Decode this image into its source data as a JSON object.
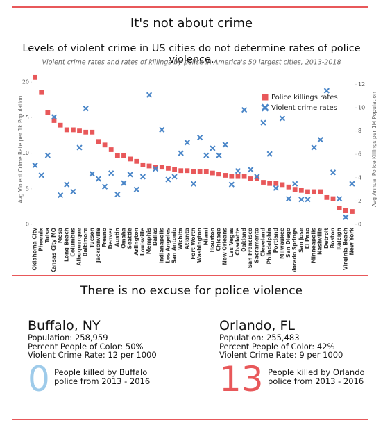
{
  "header": {
    "title": "It's not about crime",
    "subtitle": "Levels of violent crime in US cities do not determine rates of police violence."
  },
  "chart_data": {
    "type": "scatter",
    "title": "Violent crime rates and rates of killings by police in America's 50 largest cities, 2013-2018",
    "y_label": "Avg Violent Crime Rate per 1k Population",
    "y2_label": "Avg Annual Police Killings per 1M Population",
    "categories": [
      "Oklahoma City",
      "Phoenix",
      "Tulsa",
      "Kansas City MO",
      "Mesa",
      "Long Beach",
      "Columbus",
      "Albuquerque",
      "Baltimore",
      "Tucson",
      "Jacksonville",
      "Fresno",
      "Denver",
      "Austin",
      "Omaha",
      "Seattle",
      "Arlington",
      "Louisville",
      "Memphis",
      "Dallas",
      "Indianapolis",
      "Los Angeles",
      "San Antonio",
      "Wichita",
      "Atlanta",
      "Fort Worth",
      "Washington",
      "Miami",
      "Houston",
      "Chicago",
      "New Orleans",
      "Las Vegas",
      "Charlotte",
      "Oakland",
      "San Francisco",
      "Sacramento",
      "Cleveland",
      "Philadelphia",
      "Portland",
      "Milwaukee",
      "San Diego",
      "Colorado Springs",
      "San Jose",
      "El Paso",
      "Minneapolis",
      "Nashville",
      "Detroit",
      "Boston",
      "Raleigh",
      "Virginia Beach",
      "New York"
    ],
    "series": [
      {
        "name": "Police killings rates",
        "color": "#e8585a",
        "marker": "square",
        "axis": "y2",
        "values": [
          12.6,
          11.3,
          9.6,
          8.9,
          8.5,
          8.1,
          8.1,
          8.0,
          7.9,
          7.9,
          7.1,
          6.8,
          6.4,
          5.9,
          5.9,
          5.6,
          5.4,
          5.1,
          5.0,
          4.9,
          4.9,
          4.8,
          4.7,
          4.6,
          4.6,
          4.5,
          4.5,
          4.5,
          4.4,
          4.3,
          4.2,
          4.1,
          4.1,
          4.1,
          3.9,
          3.9,
          3.6,
          3.5,
          3.5,
          3.4,
          3.2,
          3.0,
          2.9,
          2.8,
          2.8,
          2.8,
          2.3,
          2.2,
          1.4,
          1.2,
          1.1
        ]
      },
      {
        "name": "Violent crime rates",
        "color": "#4a86c8",
        "marker": "x",
        "axis": "y",
        "values": [
          8.3,
          6.9,
          9.7,
          15.1,
          4.1,
          5.6,
          4.6,
          10.8,
          16.3,
          7.1,
          6.4,
          5.3,
          7.2,
          4.2,
          5.8,
          7.0,
          4.9,
          6.7,
          18.2,
          7.8,
          13.3,
          6.3,
          6.7,
          10.0,
          11.5,
          5.7,
          12.2,
          9.7,
          10.7,
          9.7,
          11.2,
          5.6,
          7.5,
          16.1,
          7.7,
          6.7,
          14.3,
          9.9,
          5.1,
          14.9,
          3.6,
          5.7,
          3.5,
          3.5,
          10.8,
          11.9,
          18.8,
          7.3,
          3.6,
          1.0,
          5.7
        ]
      }
    ],
    "ylim": [
      0,
      21
    ],
    "yticks": [
      0,
      5,
      10,
      15,
      20
    ],
    "y2lim": [
      0,
      12.8
    ],
    "y2ticks": [
      0,
      2,
      4,
      6,
      8,
      10,
      12
    ],
    "grid": false,
    "legend": "top-right"
  },
  "comparison": {
    "heading": "There is no excuse for police violence",
    "cities": [
      {
        "name": "Buffalo, NY",
        "lines": [
          "Population: 258,959",
          "Percent People of Color: 50%",
          "Violent Crime Rate: 12 per 1000"
        ],
        "killed": 0,
        "killed_text": "People killed by Buffalo police from 2013 - 2016"
      },
      {
        "name": "Orlando, FL",
        "lines": [
          "Population: 255,483",
          "Percent People of Color: 42%",
          "Violent Crime Rate: 9 per 1000"
        ],
        "killed": 13,
        "killed_text": "People killed by Orlando police from 2013 - 2016"
      }
    ]
  }
}
